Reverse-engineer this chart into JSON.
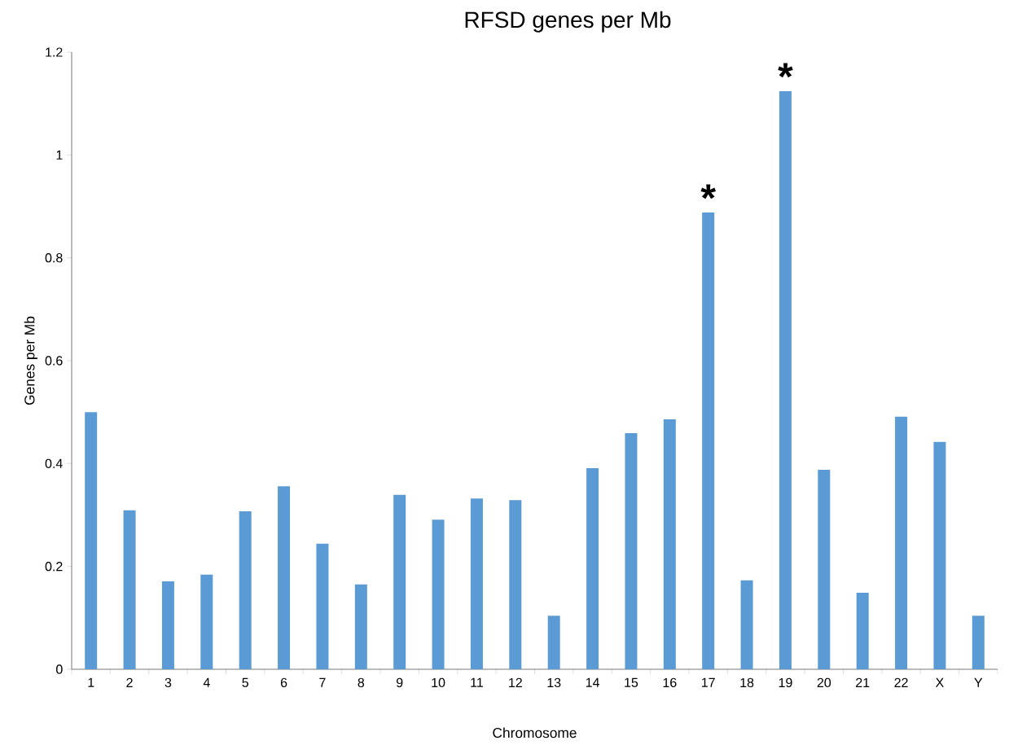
{
  "chart_data": {
    "type": "bar",
    "title": "RFSD genes per Mb",
    "xlabel": "Chromosome",
    "ylabel": "Genes per Mb",
    "categories": [
      "1",
      "2",
      "3",
      "4",
      "5",
      "6",
      "7",
      "8",
      "9",
      "10",
      "11",
      "12",
      "13",
      "14",
      "15",
      "16",
      "17",
      "18",
      "19",
      "20",
      "21",
      "22",
      "X",
      "Y"
    ],
    "values": [
      0.5,
      0.309,
      0.171,
      0.184,
      0.307,
      0.356,
      0.244,
      0.165,
      0.339,
      0.291,
      0.332,
      0.329,
      0.104,
      0.391,
      0.459,
      0.486,
      0.888,
      0.173,
      1.124,
      0.388,
      0.149,
      0.491,
      0.442,
      0.104
    ],
    "color": "#5b9bd5",
    "ylim": [
      0,
      1.2
    ],
    "yticks": [
      0,
      0.2,
      0.4,
      0.6,
      0.8,
      1,
      1.2
    ],
    "annotations": [
      {
        "text": "*",
        "x": "17",
        "y": 0.888
      },
      {
        "text": "*",
        "x": "19",
        "y": 1.124
      }
    ],
    "grid": false
  }
}
